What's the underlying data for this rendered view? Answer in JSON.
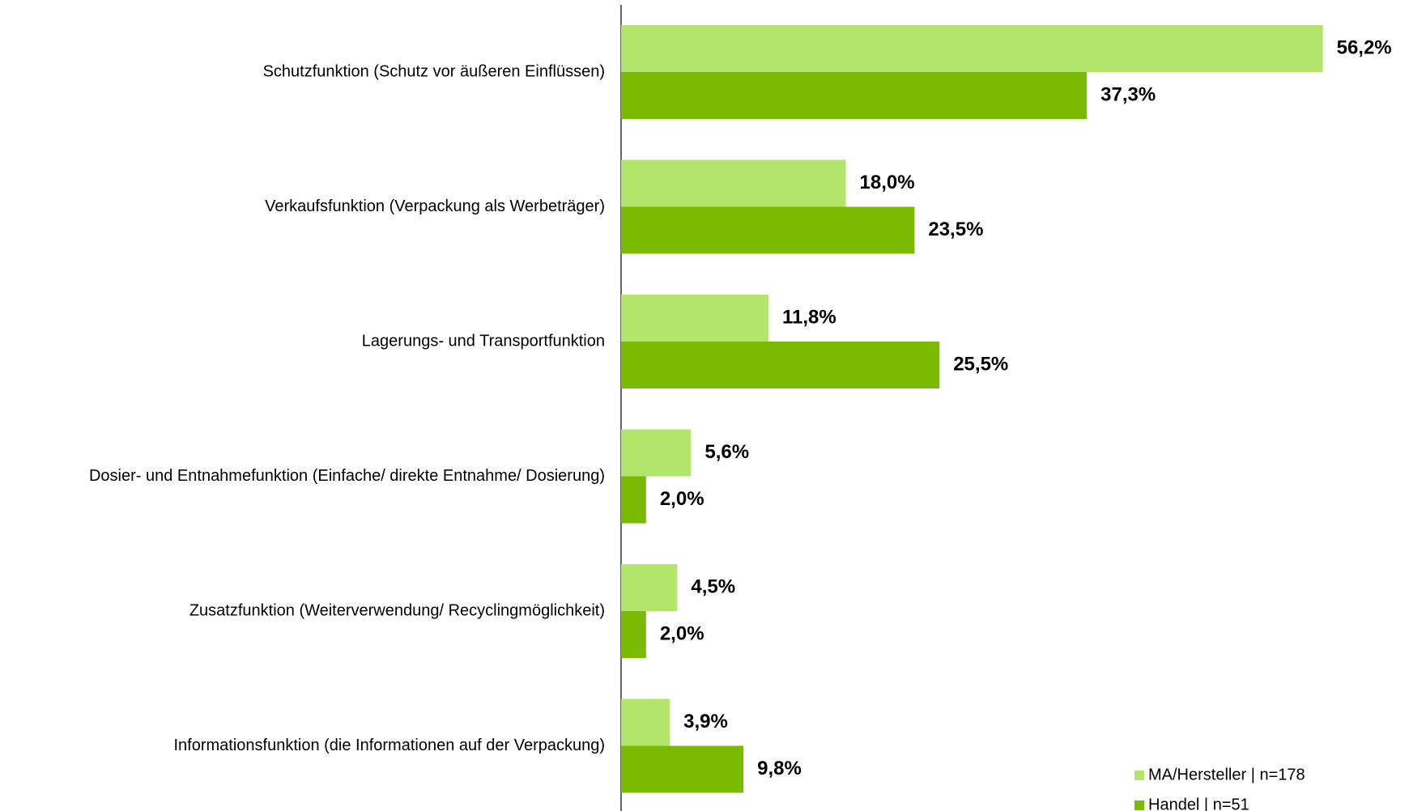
{
  "chart_data": {
    "type": "bar",
    "orientation": "horizontal",
    "categories": [
      "Schutzfunktion (Schutz vor äußeren Einflüssen)",
      "Verkaufsfunktion (Verpackung als Werbeträger)",
      "Lagerungs- und Transportfunktion",
      "Dosier- und Entnahmefunktion (Einfache/ direkte Entnahme/ Dosierung)",
      "Zusatzfunktion (Weiterverwendung/ Recyclingmöglichkeit)",
      "Informationsfunktion (die Informationen auf der Verpackung)"
    ],
    "series": [
      {
        "name": "MA/Hersteller | n=178",
        "color": "#b3e56b",
        "values": [
          56.2,
          18.0,
          11.8,
          5.6,
          4.5,
          3.9
        ],
        "value_labels": [
          "56,2%",
          "18,0%",
          "11,8%",
          "5,6%",
          "4,5%",
          "3,9%"
        ]
      },
      {
        "name": "Handel | n=51",
        "color": "#7aba00",
        "values": [
          37.3,
          23.5,
          25.5,
          2.0,
          2.0,
          9.8
        ],
        "value_labels": [
          "37,3%",
          "23,5%",
          "25,5%",
          "2,0%",
          "2,0%",
          "9,8%"
        ]
      }
    ],
    "legend": "bottom-right"
  }
}
